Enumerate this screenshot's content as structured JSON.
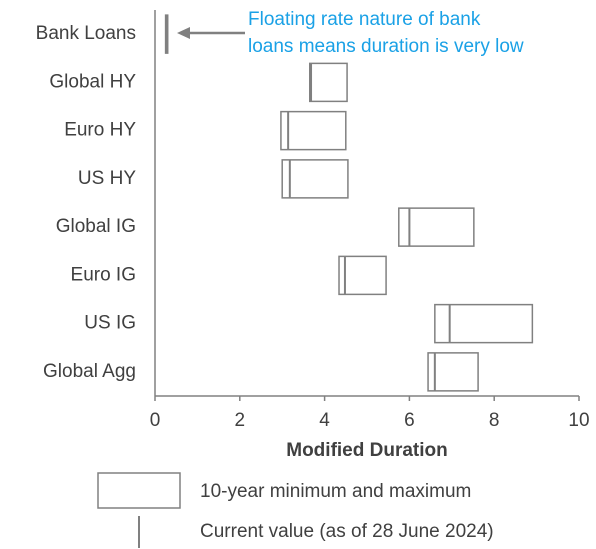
{
  "chart_data": {
    "type": "range",
    "categories": [
      "Bank Loans",
      "Global HY",
      "Euro HY",
      "US HY",
      "Global IG",
      "Euro IG",
      "US IG",
      "Global Agg"
    ],
    "min": [
      0.25,
      3.65,
      2.97,
      3.0,
      5.75,
      4.34,
      6.6,
      6.44
    ],
    "max": [
      0.3,
      4.53,
      4.5,
      4.55,
      7.52,
      5.45,
      8.9,
      7.62
    ],
    "current": [
      0.28,
      3.68,
      3.14,
      3.18,
      6.0,
      4.48,
      6.95,
      6.6
    ],
    "color": "#808080",
    "xlim": [
      0,
      10
    ],
    "xticks": [
      0,
      2,
      4,
      6,
      8,
      10
    ],
    "xlabel": "Modified Duration",
    "range_label": "10-year minimum and maximum",
    "current_label": "Current value (as of 28 June 2024)",
    "annotation": [
      "Floating rate nature of bank",
      "loans means duration is very low"
    ],
    "annotation_color": "#1aa1e6"
  }
}
